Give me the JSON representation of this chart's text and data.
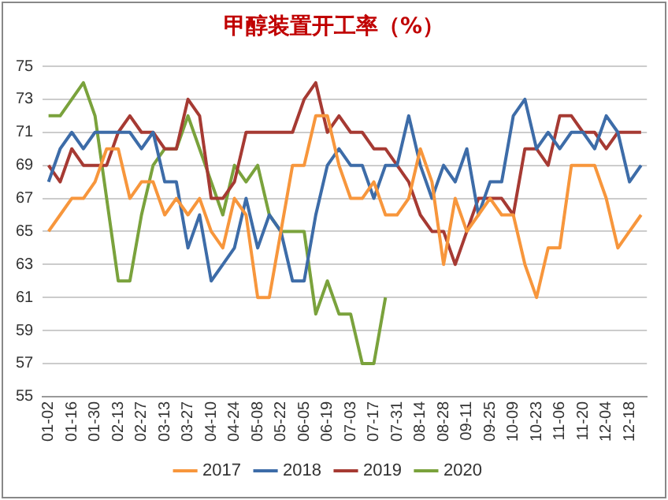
{
  "chart_data": {
    "type": "line",
    "title": "甲醇装置开工率（%）",
    "categories": [
      "01-02",
      null,
      "01-16",
      null,
      "01-30",
      null,
      "02-13",
      null,
      "02-27",
      null,
      "03-13",
      null,
      "03-27",
      null,
      "04-10",
      null,
      "04-24",
      null,
      "05-08",
      null,
      "05-22",
      null,
      "06-05",
      null,
      "06-19",
      null,
      "07-03",
      null,
      "07-17",
      null,
      "07-31",
      null,
      "08-14",
      null,
      "08-28",
      null,
      "09-11",
      null,
      "09-25",
      null,
      "10-09",
      null,
      "10-23",
      null,
      "11-06",
      null,
      "11-20",
      null,
      "12-04",
      null,
      "12-18",
      null
    ],
    "series": [
      {
        "name": "2017",
        "color": "#f7963c",
        "values": [
          65,
          66,
          67,
          67,
          68,
          70,
          70,
          67,
          68,
          68,
          66,
          67,
          66,
          67,
          65,
          64,
          67,
          66,
          61,
          61,
          65,
          69,
          69,
          72,
          72,
          69,
          67,
          67,
          68,
          66,
          66,
          67,
          70,
          68,
          63,
          67,
          65,
          66,
          67,
          66,
          66,
          63,
          61,
          64,
          64,
          69,
          69,
          69,
          67,
          64,
          65,
          66
        ]
      },
      {
        "name": "2018",
        "color": "#3d6ca8",
        "values": [
          68,
          70,
          71,
          70,
          71,
          71,
          71,
          71,
          70,
          71,
          68,
          68,
          64,
          66,
          62,
          63,
          64,
          67,
          64,
          66,
          65,
          62,
          62,
          66,
          69,
          70,
          69,
          69,
          67,
          69,
          69,
          72,
          69,
          67,
          69,
          68,
          70,
          66,
          68,
          68,
          72,
          73,
          70,
          71,
          70,
          71,
          71,
          70,
          72,
          71,
          68,
          69
        ]
      },
      {
        "name": "2019",
        "color": "#a63a33",
        "values": [
          69,
          68,
          70,
          69,
          69,
          69,
          71,
          72,
          71,
          71,
          70,
          70,
          73,
          72,
          67,
          67,
          68,
          71,
          71,
          71,
          71,
          71,
          73,
          74,
          71,
          72,
          71,
          71,
          70,
          70,
          69,
          68,
          66,
          65,
          65,
          63,
          65,
          67,
          67,
          67,
          66,
          70,
          70,
          69,
          72,
          72,
          71,
          71,
          70,
          71,
          71,
          71
        ]
      },
      {
        "name": "2020",
        "color": "#7aa23c",
        "values": [
          72,
          72,
          73,
          74,
          72,
          67,
          62,
          62,
          66,
          69,
          70,
          70,
          72,
          70,
          68,
          66,
          69,
          68,
          69,
          66,
          65,
          65,
          65,
          60,
          62,
          60,
          60,
          57,
          57,
          61,
          null,
          null,
          null,
          null,
          null,
          null,
          null,
          null,
          null,
          null,
          null,
          null,
          null,
          null,
          null,
          null,
          null,
          null,
          null,
          null,
          null,
          null
        ]
      }
    ],
    "ylim": [
      55,
      75
    ],
    "yticks": [
      55,
      57,
      59,
      61,
      63,
      65,
      67,
      69,
      71,
      73,
      75
    ],
    "grid": "y",
    "legend": "bottom",
    "marker": "none",
    "line_style": "solid"
  }
}
